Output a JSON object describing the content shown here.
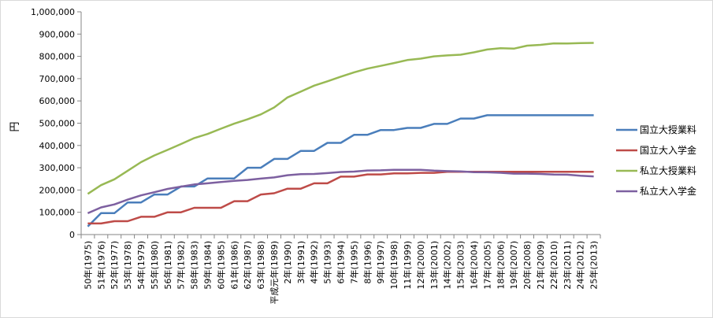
{
  "chart_data": {
    "type": "line",
    "ylabel": "円",
    "ylim": [
      0,
      1000000
    ],
    "yticks": [
      0,
      100000,
      200000,
      300000,
      400000,
      500000,
      600000,
      700000,
      800000,
      900000,
      1000000
    ],
    "ytick_labels": [
      "0",
      "100,000",
      "200,000",
      "300,000",
      "400,000",
      "500,000",
      "600,000",
      "700,000",
      "800,000",
      "900,000",
      "1,000,000"
    ],
    "grid": false,
    "legend_position": "right",
    "categories": [
      "50年(1975)",
      "51年(1976)",
      "52年(1977)",
      "53年(1978)",
      "54年(1979)",
      "55年(1980)",
      "56年(1981)",
      "57年(1982)",
      "58年(1983)",
      "59年(1984)",
      "60年(1985)",
      "61年(1986)",
      "62年(1987)",
      "63年(1988)",
      "平成元年(1989)",
      "2年(1990)",
      "3年(1991)",
      "4年(1992)",
      "5年(1993)",
      "6年(1994)",
      "7年(1995)",
      "8年(1996)",
      "9年(1997)",
      "10年(1998)",
      "11年(1999)",
      "12年(2000)",
      "13年(2001)",
      "14年(2002)",
      "15年(2003)",
      "16年(2004)",
      "17年(2005)",
      "18年(2006)",
      "19年(2007)",
      "20年(2008)",
      "21年(2009)",
      "22年(2010)",
      "23年(2011)",
      "24年(2012)",
      "25年(2013)"
    ],
    "series": [
      {
        "name": "国立大授業料",
        "color": "#4a7ebb",
        "values": [
          36000,
          96000,
          96000,
          144000,
          144000,
          180000,
          180000,
          216000,
          216000,
          252000,
          252000,
          252000,
          300000,
          300000,
          339600,
          339600,
          375600,
          375600,
          411600,
          411600,
          447600,
          447600,
          469200,
          469200,
          478800,
          478800,
          496800,
          496800,
          520800,
          520800,
          535800,
          535800,
          535800,
          535800,
          535800,
          535800,
          535800,
          535800,
          535800
        ]
      },
      {
        "name": "国立大入学金",
        "color": "#be4b48",
        "values": [
          50000,
          50000,
          60000,
          60000,
          80000,
          80000,
          100000,
          100000,
          120000,
          120000,
          120000,
          150000,
          150000,
          180000,
          185400,
          206000,
          206000,
          230000,
          230000,
          260000,
          260000,
          270000,
          270000,
          275000,
          275000,
          277000,
          277000,
          282000,
          282000,
          282000,
          282000,
          282000,
          282000,
          282000,
          282000,
          282000,
          282000,
          282000,
          282000
        ]
      },
      {
        "name": "私立大授業料",
        "color": "#98b954",
        "values": [
          182677,
          221844,
          248066,
          286568,
          325198,
          355156,
          380253,
          406261,
          433200,
          451722,
          475325,
          497826,
          517395,
          539591,
          570584,
          615486,
          641608,
          668460,
          688046,
          708847,
          728365,
          744733,
          757158,
          770024,
          783298,
          789659,
          799973,
          804367,
          807413,
          817952,
          830583,
          836297,
          834751,
          848178,
          851621,
          858265,
          857763,
          859367,
          860266
        ]
      },
      {
        "name": "私立大入学金",
        "color": "#7d60a0",
        "values": [
          95584,
          121888,
          135205,
          157019,
          175999,
          190113,
          204785,
          215306,
          225000,
          230102,
          235769,
          241275,
          245263,
          251124,
          256600,
          266603,
          271151,
          271948,
          275824,
          280892,
          282574,
          287581,
          288471,
          290799,
          290815,
          290691,
          286952,
          284643,
          283306,
          279794,
          279486,
          277262,
          273564,
          273602,
          272169,
          269481,
          269024,
          264390,
          261089
        ]
      }
    ]
  }
}
